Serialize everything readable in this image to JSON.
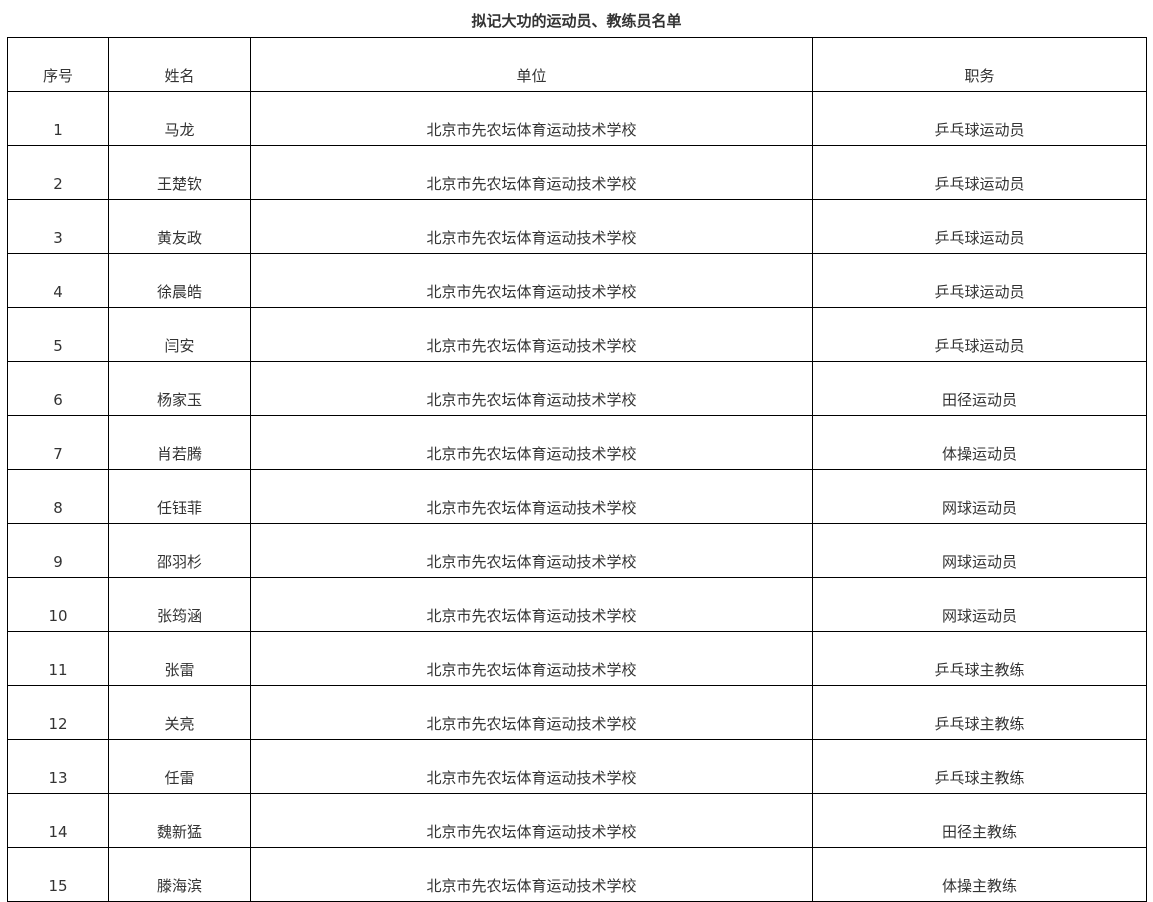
{
  "title": "拟记大功的运动员、教练员名单",
  "headers": [
    "序号",
    "姓名",
    "单位",
    "职务"
  ],
  "rows": [
    {
      "no": "1",
      "name": "马龙",
      "unit": "北京市先农坛体育运动技术学校",
      "role": "乒乓球运动员"
    },
    {
      "no": "2",
      "name": "王楚钦",
      "unit": "北京市先农坛体育运动技术学校",
      "role": "乒乓球运动员"
    },
    {
      "no": "3",
      "name": "黄友政",
      "unit": "北京市先农坛体育运动技术学校",
      "role": "乒乓球运动员"
    },
    {
      "no": "4",
      "name": "徐晨皓",
      "unit": "北京市先农坛体育运动技术学校",
      "role": "乒乓球运动员"
    },
    {
      "no": "5",
      "name": "闫安",
      "unit": "北京市先农坛体育运动技术学校",
      "role": "乒乓球运动员"
    },
    {
      "no": "6",
      "name": "杨家玉",
      "unit": "北京市先农坛体育运动技术学校",
      "role": "田径运动员"
    },
    {
      "no": "7",
      "name": "肖若腾",
      "unit": "北京市先农坛体育运动技术学校",
      "role": "体操运动员"
    },
    {
      "no": "8",
      "name": "任钰菲",
      "unit": "北京市先农坛体育运动技术学校",
      "role": "网球运动员"
    },
    {
      "no": "9",
      "name": "邵羽杉",
      "unit": "北京市先农坛体育运动技术学校",
      "role": "网球运动员"
    },
    {
      "no": "10",
      "name": "张筠涵",
      "unit": "北京市先农坛体育运动技术学校",
      "role": "网球运动员"
    },
    {
      "no": "11",
      "name": "张雷",
      "unit": "北京市先农坛体育运动技术学校",
      "role": "乒乓球主教练"
    },
    {
      "no": "12",
      "name": "关亮",
      "unit": "北京市先农坛体育运动技术学校",
      "role": "乒乓球主教练"
    },
    {
      "no": "13",
      "name": "任雷",
      "unit": "北京市先农坛体育运动技术学校",
      "role": "乒乓球主教练"
    },
    {
      "no": "14",
      "name": "魏新猛",
      "unit": "北京市先农坛体育运动技术学校",
      "role": "田径主教练"
    },
    {
      "no": "15",
      "name": "滕海滨",
      "unit": "北京市先农坛体育运动技术学校",
      "role": "体操主教练"
    }
  ]
}
